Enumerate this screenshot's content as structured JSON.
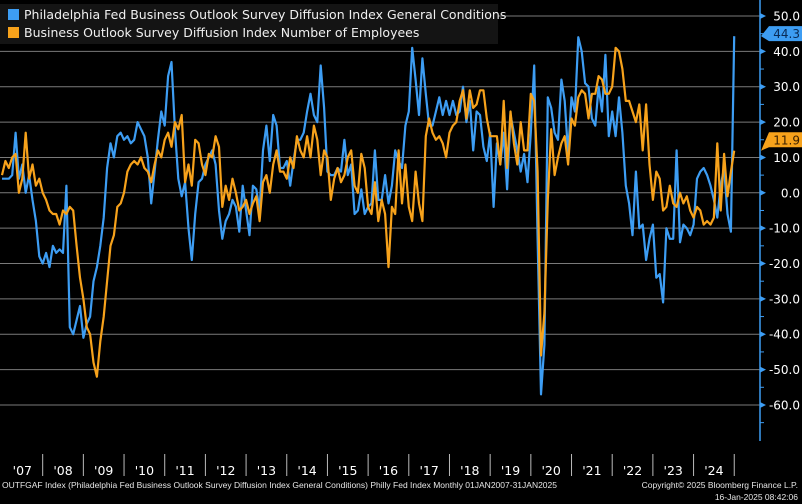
{
  "chart_data": {
    "type": "line",
    "title": "",
    "x_start": "Jan 2007",
    "frequency": "Monthly",
    "ylim": [
      -70,
      55
    ],
    "yticks": [
      50,
      40,
      30,
      20,
      10,
      0,
      -10,
      -20,
      -30,
      -40,
      -50,
      -60
    ],
    "ytick_labels": [
      "50.0",
      "40.0",
      "30.0",
      "20.0",
      "10.0",
      "0.0",
      "-10.0",
      "-20.0",
      "-30.0",
      "-40.0",
      "-50.0",
      "-60.0"
    ],
    "xtick_labels": [
      "'07",
      "'08",
      "'09",
      "'10",
      "'11",
      "'12",
      "'13",
      "'14",
      "'15",
      "'16",
      "'17",
      "'18",
      "'19",
      "'20",
      "'21",
      "'22",
      "'23",
      "'24"
    ],
    "grid": true,
    "legend_position": "top-left",
    "series": [
      {
        "name": "Philadelphia Fed Business Outlook Survey Diffusion Index General Conditions",
        "color": "#3d9df3",
        "last_value_label": "44.3",
        "values": [
          4,
          4,
          4,
          5,
          17,
          4,
          8,
          0,
          5,
          -2,
          -8,
          -18,
          -20,
          -17,
          -21,
          -15,
          -17,
          -16,
          -17,
          2,
          -38,
          -40,
          -36,
          -32,
          -41,
          -37,
          -35,
          -25,
          -21,
          -15,
          -7,
          7,
          14,
          10,
          16,
          17,
          15,
          16,
          14,
          15,
          20,
          18,
          16,
          10,
          -3,
          6,
          15,
          23,
          19,
          33,
          37,
          18,
          4,
          -1,
          3,
          -10,
          -19,
          -6,
          3,
          4,
          8,
          10,
          12,
          8,
          -5,
          -13,
          -8,
          -6,
          -2,
          -4,
          -11,
          2,
          -5,
          -12,
          2,
          1,
          -5,
          12,
          19,
          9,
          22,
          19,
          7,
          7,
          9,
          2,
          9,
          15,
          15,
          17,
          23,
          28,
          22,
          20,
          36,
          24,
          6,
          5,
          5,
          7,
          6,
          15,
          5,
          8,
          -6,
          -5,
          1,
          -6,
          -4,
          -3,
          12,
          -2,
          -2,
          5,
          -3,
          2,
          12,
          9,
          7,
          19,
          23,
          41,
          32,
          22,
          38,
          28,
          19,
          19,
          23,
          27,
          22,
          26,
          22,
          26,
          22,
          23,
          30,
          20,
          26,
          12,
          23,
          22,
          13,
          9,
          17,
          -4,
          14,
          8,
          17,
          1,
          22,
          17,
          12,
          6,
          11,
          3,
          17,
          36,
          -13,
          -57,
          -43,
          27,
          24,
          17,
          15,
          32,
          26,
          11,
          27,
          23,
          44,
          40,
          31,
          30,
          21,
          19,
          30,
          23,
          39,
          16,
          23,
          16,
          27,
          17,
          2,
          -3,
          -12,
          6,
          -10,
          -9,
          -19,
          -13,
          -9,
          -24,
          -23,
          -31,
          -10,
          -13,
          -13,
          12,
          -14,
          -9,
          -10,
          -12,
          -9,
          4,
          6,
          7,
          5,
          2,
          -2,
          -7,
          2,
          7,
          -6,
          -11,
          44.3
        ]
      },
      {
        "name": "Business Outlook Survey Diffusion Index Number of Employees",
        "color": "#f7a21b",
        "last_value_label": "11.9",
        "values": [
          5,
          9,
          7,
          10,
          11,
          0,
          4,
          17,
          4,
          8,
          2,
          4,
          0,
          -2,
          -5,
          -6,
          -6,
          -9,
          -5,
          -6,
          -4,
          -5,
          -15,
          -24,
          -30,
          -38,
          -40,
          -48,
          -52,
          -42,
          -35,
          -25,
          -15,
          -12,
          -4,
          -3,
          0,
          6,
          8,
          9,
          8,
          10,
          7,
          6,
          3,
          8,
          12,
          10,
          15,
          17,
          13,
          20,
          18,
          22,
          3,
          8,
          2,
          15,
          14,
          8,
          5,
          11,
          10,
          16,
          13,
          -4,
          2,
          -2,
          4,
          0,
          -5,
          -4,
          -2,
          -6,
          -3,
          -1,
          -8,
          3,
          5,
          0,
          8,
          12,
          6,
          6,
          4,
          10,
          7,
          16,
          12,
          10,
          16,
          10,
          19,
          15,
          5,
          12,
          10,
          -2,
          4,
          7,
          3,
          5,
          10,
          12,
          2,
          0,
          11,
          7,
          -4,
          -6,
          3,
          -8,
          -2,
          -6,
          -21,
          -4,
          -6,
          12,
          -3,
          8,
          -4,
          -8,
          6,
          -3,
          -8,
          16,
          21,
          17,
          15,
          16,
          14,
          10,
          17,
          19,
          20,
          26,
          29,
          21,
          29,
          24,
          25,
          29,
          29,
          21,
          16,
          16,
          16,
          8,
          26,
          7,
          23,
          14,
          8,
          20,
          12,
          12,
          28,
          26,
          6,
          -46,
          -34,
          -2,
          18,
          5,
          10,
          14,
          16,
          8,
          21,
          19,
          27,
          29,
          28,
          21,
          28,
          28,
          33,
          32,
          28,
          28,
          30,
          41,
          40,
          35,
          26,
          26,
          23,
          20,
          25,
          12,
          25,
          8,
          -2,
          6,
          4,
          -5,
          -4,
          2,
          -3,
          -4,
          0,
          -3,
          -1,
          -5,
          -7,
          -4,
          -5,
          -9,
          -8,
          -9,
          -7,
          14,
          -5,
          11,
          -1,
          6,
          11.9
        ]
      }
    ]
  },
  "footer": {
    "source": "OUTFGAF Index (Philadelphia Fed Business Outlook Survey Diffusion Index General Conditions) Philly Fed Index  Monthly 01JAN2007-31JAN2025",
    "copyright": "Copyright© 2025 Bloomberg Finance L.P.",
    "timestamp": "16-Jan-2025 08:42:06"
  }
}
